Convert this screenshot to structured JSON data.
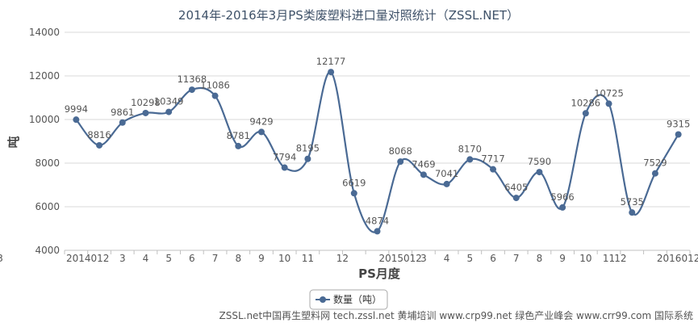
{
  "chart_data": {
    "type": "line",
    "title": "2014年-2016年3月PS类废塑料进口量对照统计（ZSSL.NET）",
    "xlabel": "PS月度",
    "ylabel": "吨",
    "categories": [
      "201401",
      "2",
      "3",
      "4",
      "5",
      "6",
      "7",
      "8",
      "9",
      "10",
      "11",
      "12",
      "201501",
      "2",
      "3",
      "4",
      "5",
      "6",
      "7",
      "8",
      "9",
      "10",
      "11",
      "12",
      "201601",
      "2",
      "3"
    ],
    "tick_labels": [
      "2014012",
      "3",
      "4",
      "5",
      "6",
      "7",
      "8",
      "9",
      "10",
      "11",
      "12",
      "2015012",
      "3",
      "4",
      "5",
      "6",
      "7",
      "8",
      "9",
      "10",
      "11",
      "12",
      "2016012",
      "3"
    ],
    "series": [
      {
        "name": "数量（吨）",
        "values": [
          9994,
          8816,
          9861,
          10298,
          10349,
          11368,
          11086,
          8781,
          9429,
          7794,
          8195,
          12177,
          6619,
          4874,
          8068,
          7469,
          7041,
          8170,
          7717,
          6405,
          7590,
          5966,
          10286,
          10725,
          5735,
          7529,
          9315
        ]
      }
    ],
    "ylim": [
      4000,
      14000
    ],
    "yticks": [
      4000,
      6000,
      8000,
      10000,
      12000,
      14000
    ],
    "grid": true,
    "legend": "bottom-center",
    "colors": {
      "line": "#4a6a94",
      "marker": "#4a6a94",
      "grid": "#d8d8d8",
      "axis": "#c0c0c0"
    }
  },
  "footer": "ZSSL.net中国再生塑料网 tech.zssl.net 黄埔培训 www.crp99.net 绿色产业峰会 www.crr99.com 国际系统"
}
